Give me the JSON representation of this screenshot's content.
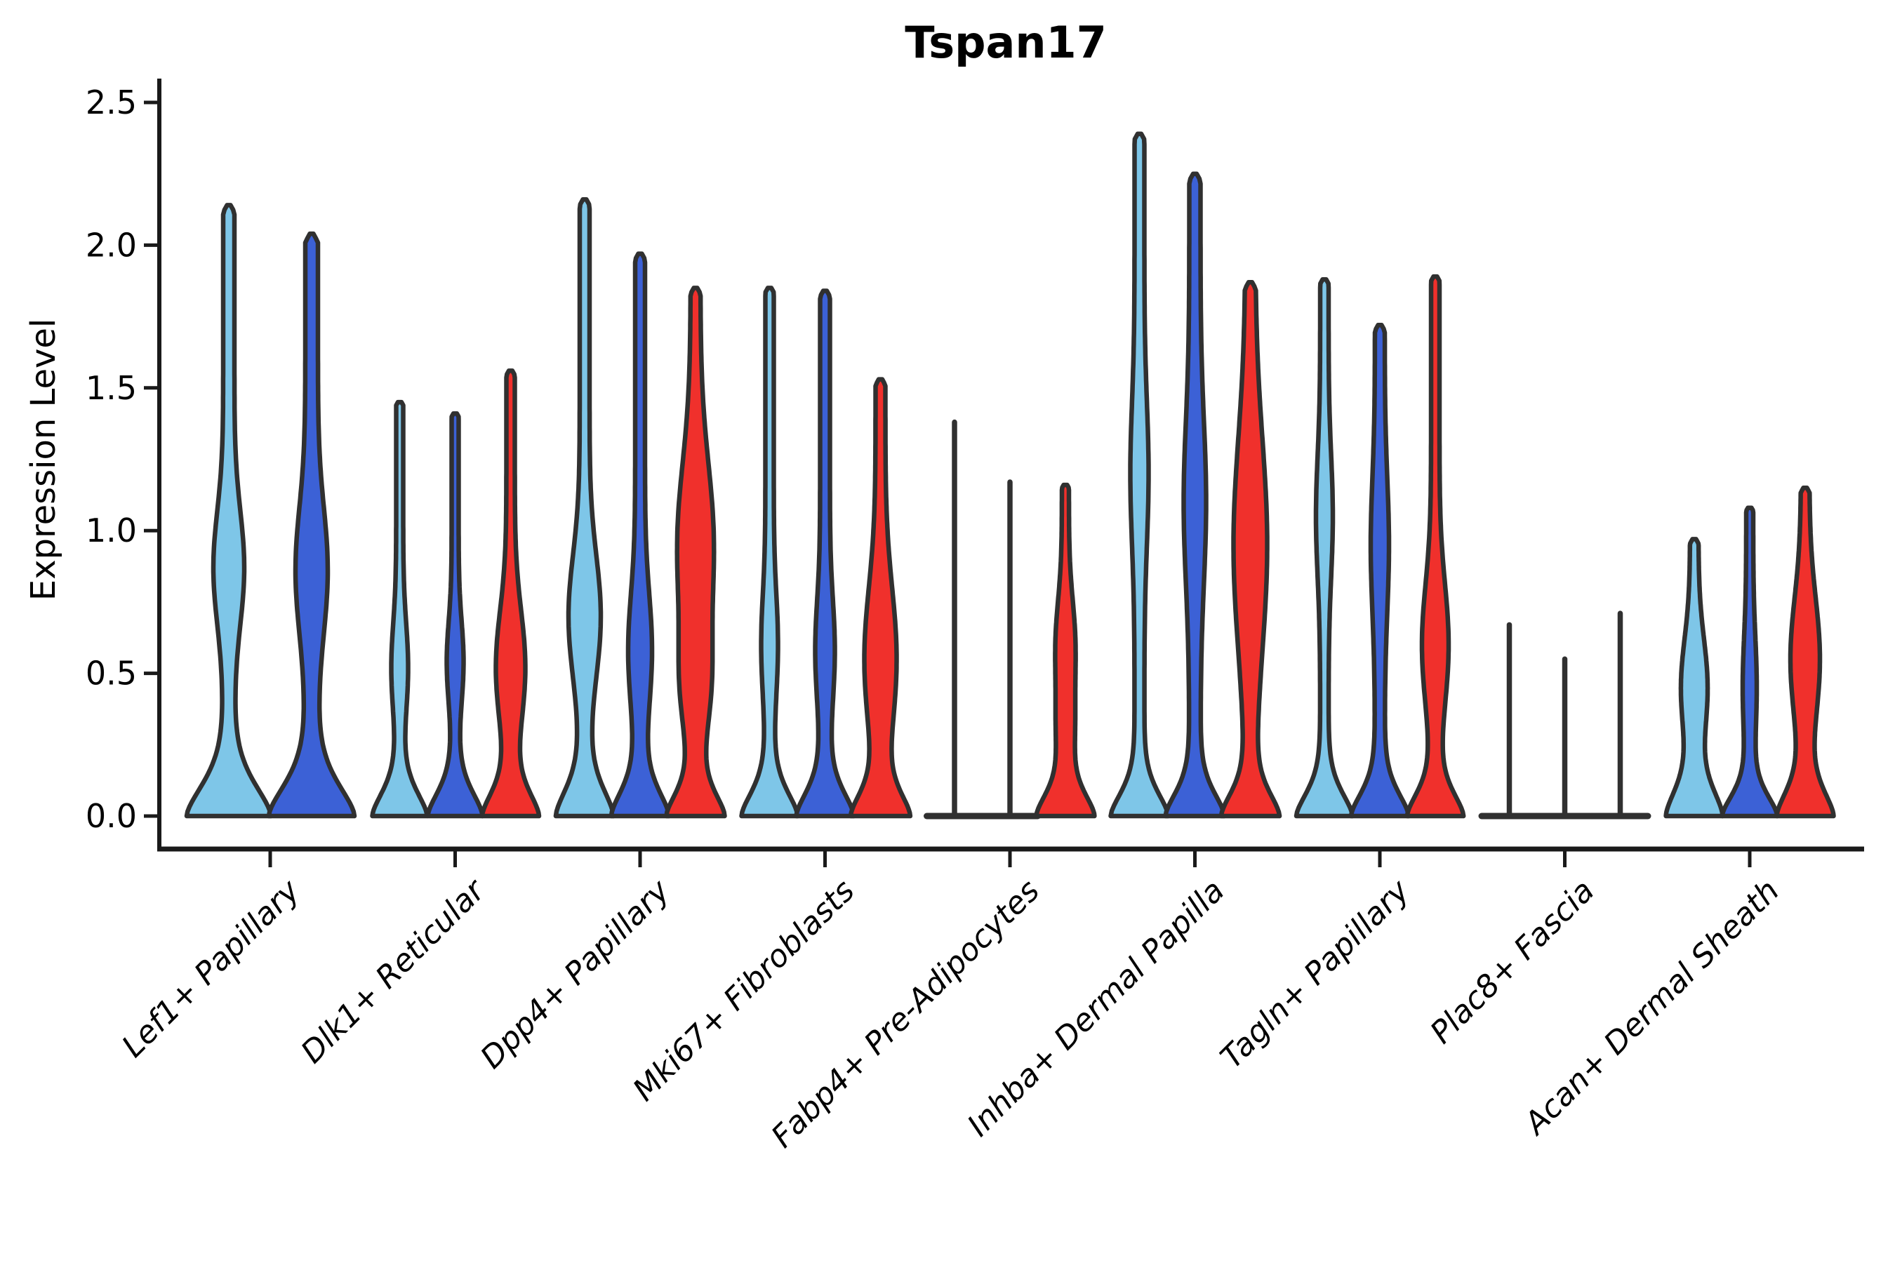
{
  "chart_data": {
    "type": "violin",
    "title": "Tspan17",
    "ylabel": "Expression Level",
    "xlabel": "",
    "ylim": [
      0.0,
      2.5
    ],
    "yticks": [
      "0.0",
      "0.5",
      "1.0",
      "1.5",
      "2.0",
      "2.5"
    ],
    "grid": false,
    "legend": "none",
    "series_colors": {
      "light-blue": "#7EC6E8",
      "dark-blue": "#3C61D6",
      "red": "#F0302C"
    },
    "outline_color": "#303030",
    "axis_color": "#1a1a1a",
    "categories": [
      "Lef1+ Papillary",
      "Dlk1+ Reticular",
      "Dpp4+ Papillary",
      "Mki67+ Fibroblasts",
      "Fabp4+ Pre-Adipocytes",
      "Inhba+ Dermal Papilla",
      "Tagln+ Papillary",
      "Plac8+ Fascia",
      "Acan+ Dermal Sheath"
    ],
    "groups": [
      {
        "label": "Lef1+ Papillary",
        "violins": [
          {
            "series": "light-blue",
            "max_expression": 2.14,
            "stem": 8,
            "base": 52,
            "base_sigma": 0.16,
            "bulges": [
              [
                0.87,
                14,
                0.28
              ]
            ]
          },
          {
            "series": "dark-blue",
            "max_expression": 2.04,
            "stem": 9,
            "base": 52,
            "base_sigma": 0.16,
            "bulges": [
              [
                0.86,
                14,
                0.31
              ]
            ]
          }
        ]
      },
      {
        "label": "Dlk1+ Reticular",
        "violins": [
          {
            "series": "light-blue",
            "max_expression": 1.45,
            "stem": 5,
            "base": 34,
            "base_sigma": 0.125,
            "bulges": [
              [
                0.52,
                7,
                0.22
              ]
            ]
          },
          {
            "series": "dark-blue",
            "max_expression": 1.41,
            "stem": 5,
            "base": 34,
            "base_sigma": 0.125,
            "bulges": [
              [
                0.54,
                7,
                0.2
              ]
            ]
          },
          {
            "series": "red",
            "max_expression": 1.56,
            "stem": 6,
            "base": 34,
            "base_sigma": 0.125,
            "bulges": [
              [
                0.52,
                15,
                0.28
              ]
            ]
          }
        ]
      },
      {
        "label": "Dpp4+ Papillary",
        "violins": [
          {
            "series": "light-blue",
            "max_expression": 2.16,
            "stem": 7,
            "base": 34,
            "base_sigma": 0.14,
            "bulges": [
              [
                0.7,
                16,
                0.3
              ]
            ]
          },
          {
            "series": "dark-blue",
            "max_expression": 1.97,
            "stem": 7,
            "base": 34,
            "base_sigma": 0.13,
            "bulges": [
              [
                0.58,
                10,
                0.28
              ]
            ]
          },
          {
            "series": "red",
            "max_expression": 1.85,
            "stem": 7,
            "base": 34,
            "base_sigma": 0.12,
            "bulges": [
              [
                0.95,
                19,
                0.4
              ],
              [
                0.45,
                12,
                0.25
              ]
            ]
          }
        ]
      },
      {
        "label": "Mki67+ Fibroblasts",
        "violins": [
          {
            "series": "light-blue",
            "max_expression": 1.85,
            "stem": 6,
            "base": 34,
            "base_sigma": 0.125,
            "bulges": [
              [
                0.6,
                6,
                0.25
              ]
            ]
          },
          {
            "series": "dark-blue",
            "max_expression": 1.84,
            "stem": 7,
            "base": 34,
            "base_sigma": 0.125,
            "bulges": [
              [
                0.58,
                7,
                0.25
              ]
            ]
          },
          {
            "series": "red",
            "max_expression": 1.53,
            "stem": 7,
            "base": 34,
            "base_sigma": 0.12,
            "bulges": [
              [
                0.55,
                16,
                0.35
              ]
            ]
          }
        ]
      },
      {
        "label": "Fabp4+ Pre-Adipocytes",
        "violins": [
          {
            "series": "light-blue",
            "max_expression": 1.38,
            "flat": true,
            "stem": 4
          },
          {
            "series": "dark-blue",
            "max_expression": 1.17,
            "flat": true,
            "stem": 4
          },
          {
            "series": "red",
            "max_expression": 1.16,
            "stem": 5,
            "base": 36,
            "base_sigma": 0.12,
            "bulges": [
              [
                0.6,
                9,
                0.22
              ],
              [
                0.3,
                7,
                0.18
              ]
            ]
          }
        ]
      },
      {
        "label": "Inhba+ Dermal Papilla",
        "violins": [
          {
            "series": "light-blue",
            "max_expression": 2.39,
            "stem": 7,
            "base": 34,
            "base_sigma": 0.12,
            "bulges": [
              [
                1.2,
                6,
                0.35
              ]
            ]
          },
          {
            "series": "dark-blue",
            "max_expression": 2.25,
            "stem": 8,
            "base": 34,
            "base_sigma": 0.12,
            "bulges": [
              [
                1.1,
                8,
                0.4
              ]
            ]
          },
          {
            "series": "red",
            "max_expression": 1.87,
            "stem": 7,
            "base": 34,
            "base_sigma": 0.12,
            "bulges": [
              [
                0.95,
                17,
                0.52
              ]
            ]
          }
        ]
      },
      {
        "label": "Tagln+ Papillary",
        "violins": [
          {
            "series": "light-blue",
            "max_expression": 1.88,
            "stem": 6,
            "base": 34,
            "base_sigma": 0.12,
            "bulges": [
              [
                1.05,
                6,
                0.3
              ]
            ]
          },
          {
            "series": "dark-blue",
            "max_expression": 1.72,
            "stem": 7,
            "base": 34,
            "base_sigma": 0.12,
            "bulges": [
              [
                0.95,
                6,
                0.33
              ]
            ]
          },
          {
            "series": "red",
            "max_expression": 1.89,
            "stem": 6,
            "base": 34,
            "base_sigma": 0.12,
            "bulges": [
              [
                0.6,
                13,
                0.3
              ]
            ]
          }
        ]
      },
      {
        "label": "Plac8+ Fascia",
        "violins": [
          {
            "series": "light-blue",
            "max_expression": 0.67,
            "flat": true,
            "stem": 4
          },
          {
            "series": "dark-blue",
            "max_expression": 0.55,
            "flat": true,
            "stem": 4
          },
          {
            "series": "red",
            "max_expression": 0.71,
            "flat": true,
            "stem": 4
          }
        ]
      },
      {
        "label": "Acan+ Dermal Sheath",
        "violins": [
          {
            "series": "light-blue",
            "max_expression": 0.97,
            "stem": 6,
            "base": 34,
            "base_sigma": 0.14,
            "bulges": [
              [
                0.45,
                13,
                0.24
              ]
            ]
          },
          {
            "series": "dark-blue",
            "max_expression": 1.08,
            "stem": 5,
            "base": 34,
            "base_sigma": 0.11,
            "bulges": [
              [
                0.45,
                5,
                0.25
              ]
            ]
          },
          {
            "series": "red",
            "max_expression": 1.15,
            "stem": 6,
            "base": 34,
            "base_sigma": 0.13,
            "bulges": [
              [
                0.55,
                15,
                0.3
              ]
            ]
          }
        ]
      }
    ]
  }
}
